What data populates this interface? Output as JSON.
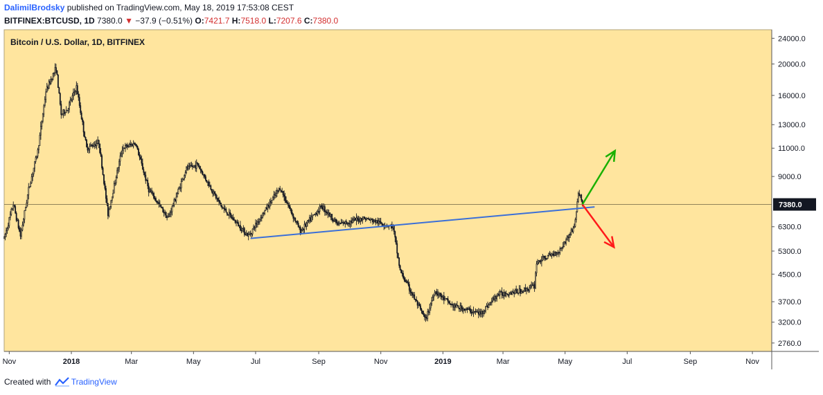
{
  "header": {
    "user": "DalimilBrodsky",
    "published_text": "published on TradingView.com, May 18, 2019 17:53:08 CEST",
    "symbol": "BITFINEX:BTCUSD, 1D",
    "last": "7380.0",
    "change": "−37.9 (−0.51%)",
    "o_label": "O:",
    "o_value": "7421.7",
    "h_label": "H:",
    "h_value": "7518.0",
    "l_label": "L:",
    "l_value": "7207.6",
    "c_label": "C:",
    "c_value": "7380.0"
  },
  "footer": {
    "created_with": "Created with",
    "brand": "TradingView"
  },
  "colors": {
    "background": "#ffe59e",
    "candle": "#131722",
    "trendline": "#3a6fd8",
    "up_arrow": "#19b000",
    "down_arrow": "#ff1a1a",
    "price_tag": "#131722"
  },
  "chart_data": {
    "type": "candlestick",
    "title": "Bitcoin / U.S. Dollar, 1D, BITFINEX",
    "scale": "log",
    "ylim": [
      2600,
      25500
    ],
    "y_ticks": [
      "24000.0",
      "20000.0",
      "16000.0",
      "13000.0",
      "11000.0",
      "9000.0",
      "7380.0",
      "6300.0",
      "5300.0",
      "4500.0",
      "3700.0",
      "3200.0",
      "2760.0"
    ],
    "x_ticks": [
      "Nov",
      "2018",
      "Mar",
      "May",
      "Jul",
      "Sep",
      "Nov",
      "2019",
      "Mar",
      "May",
      "Jul",
      "Sep",
      "Nov"
    ],
    "xlim": [
      "2017-10-27",
      "2019-11-20"
    ],
    "last_price": 7380.0,
    "price_path": [
      [
        "2017-10-27",
        5800
      ],
      [
        "2017-11-05",
        7400
      ],
      [
        "2017-11-12",
        5900
      ],
      [
        "2017-11-20",
        8200
      ],
      [
        "2017-11-29",
        10800
      ],
      [
        "2017-12-07",
        16500
      ],
      [
        "2017-12-17",
        19500
      ],
      [
        "2017-12-22",
        14000
      ],
      [
        "2017-12-28",
        14500
      ],
      [
        "2018-01-06",
        17000
      ],
      [
        "2018-01-16",
        11000
      ],
      [
        "2018-01-28",
        11500
      ],
      [
        "2018-02-06",
        6900
      ],
      [
        "2018-02-20",
        11000
      ],
      [
        "2018-03-05",
        11400
      ],
      [
        "2018-03-18",
        8200
      ],
      [
        "2018-04-06",
        6700
      ],
      [
        "2018-04-24",
        9500
      ],
      [
        "2018-05-05",
        9800
      ],
      [
        "2018-05-28",
        7300
      ],
      [
        "2018-06-24",
        5900
      ],
      [
        "2018-07-04",
        6600
      ],
      [
        "2018-07-25",
        8300
      ],
      [
        "2018-08-14",
        6100
      ],
      [
        "2018-09-04",
        7300
      ],
      [
        "2018-09-20",
        6400
      ],
      [
        "2018-10-15",
        6700
      ],
      [
        "2018-11-13",
        6300
      ],
      [
        "2018-11-20",
        4600
      ],
      [
        "2018-12-15",
        3250
      ],
      [
        "2018-12-24",
        4000
      ],
      [
        "2019-01-10",
        3600
      ],
      [
        "2019-02-07",
        3400
      ],
      [
        "2019-02-24",
        3900
      ],
      [
        "2019-03-20",
        4000
      ],
      [
        "2019-04-01",
        4150
      ],
      [
        "2019-04-03",
        4900
      ],
      [
        "2019-04-25",
        5300
      ],
      [
        "2019-05-10",
        6300
      ],
      [
        "2019-05-14",
        7900
      ],
      [
        "2019-05-16",
        7900
      ],
      [
        "2019-05-18",
        7380
      ]
    ],
    "annotations": {
      "trendline": {
        "from": [
          "2018-06-26",
          5800
        ],
        "to": [
          "2019-05-30",
          7250
        ]
      },
      "arrow_up": {
        "from": [
          "2019-05-18",
          7380
        ],
        "to": [
          "2019-06-19",
          10800
        ]
      },
      "arrow_down": {
        "from": [
          "2019-05-18",
          7380
        ],
        "to": [
          "2019-06-18",
          5450
        ]
      }
    }
  }
}
